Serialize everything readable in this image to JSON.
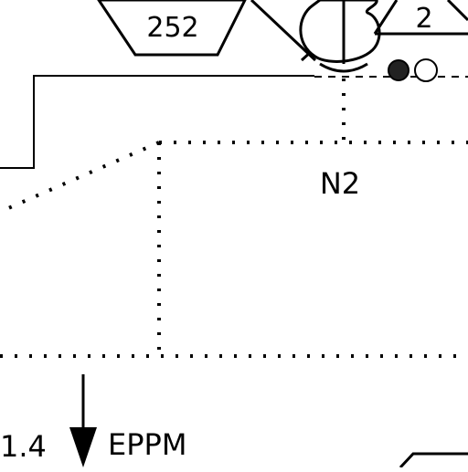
{
  "diagram": {
    "hex_label": "252",
    "right_label": "2",
    "zone_label": "N2",
    "rate_value": "1.4",
    "rate_unit": "EPPM"
  },
  "colors": {
    "line": "#000000",
    "background": "#ffffff",
    "fill_dark": "#222222",
    "fill_light": "#ffffff"
  }
}
